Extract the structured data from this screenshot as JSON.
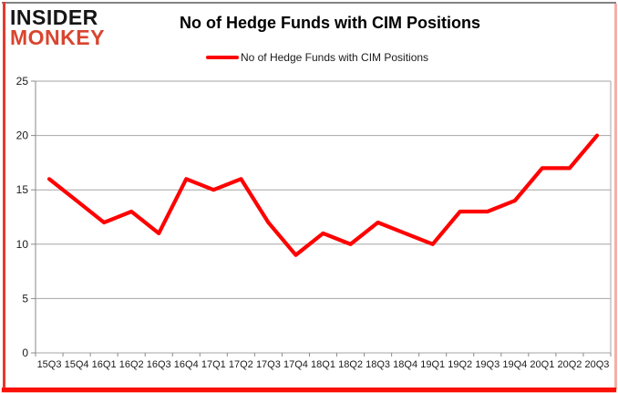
{
  "brand": {
    "line1": "INSIDER",
    "line2": "MONKEY"
  },
  "header": {
    "title": "No of Hedge Funds with CIM Positions"
  },
  "legend": {
    "label": "No of Hedge Funds with CIM Positions"
  },
  "chart_data": {
    "type": "line",
    "title": "No of Hedge Funds with CIM Positions",
    "categories": [
      "15Q3",
      "15Q4",
      "16Q1",
      "16Q2",
      "16Q3",
      "16Q4",
      "17Q1",
      "17Q2",
      "17Q3",
      "17Q4",
      "18Q1",
      "18Q2",
      "18Q3",
      "18Q4",
      "19Q1",
      "19Q2",
      "19Q3",
      "19Q4",
      "20Q1",
      "20Q2",
      "20Q3"
    ],
    "series": [
      {
        "name": "No of Hedge Funds with CIM Positions",
        "color": "#ff0000",
        "values": [
          16,
          14,
          12,
          13,
          11,
          16,
          15,
          16,
          12,
          9,
          11,
          10,
          12,
          11,
          10,
          13,
          13,
          14,
          17,
          17,
          20
        ]
      }
    ],
    "xlabel": "",
    "ylabel": "",
    "ylim": [
      0,
      25
    ],
    "yticks": [
      0,
      5,
      10,
      15,
      20,
      25
    ],
    "grid": true,
    "legend_position": "top-center",
    "grid_color": "#a6a6a6",
    "axis_color": "#8a8a8a",
    "tick_label_color": "#1a1a1a"
  }
}
